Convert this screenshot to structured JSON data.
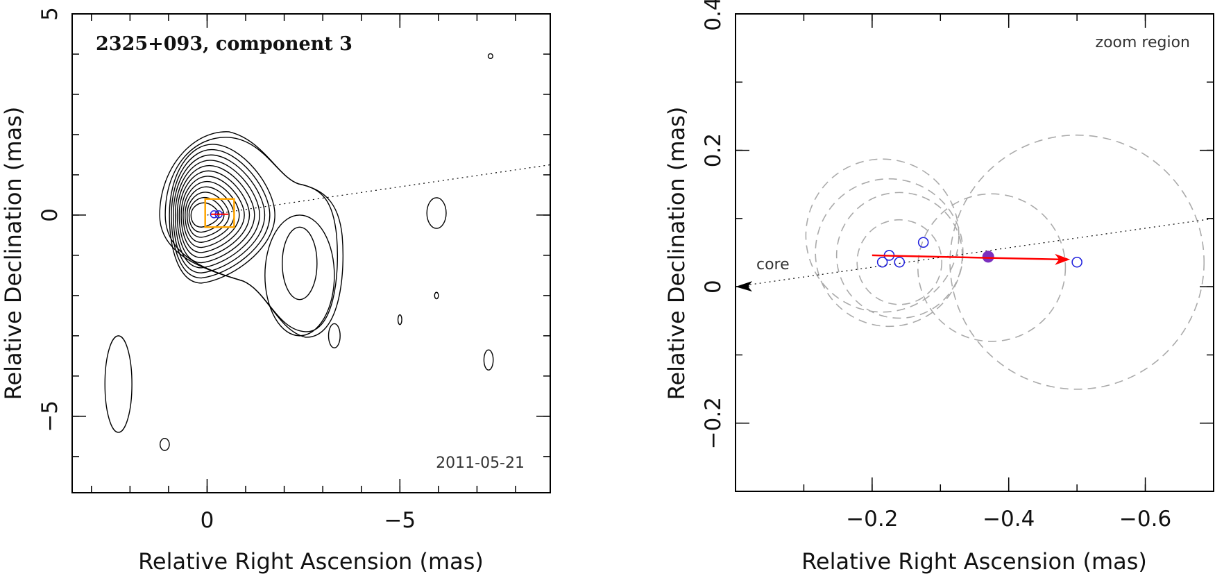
{
  "chart_data": [
    {
      "type": "contour",
      "title": "2325+093, component 3",
      "date": "2011-05-21",
      "xlabel": "Relative Right Ascension (mas)",
      "ylabel": "Relative Declination (mas)",
      "xlim": [
        3.5,
        -8.9
      ],
      "ylim": [
        -6.9,
        5.0
      ],
      "xticks": [
        0,
        -5
      ],
      "xtick_labels": [
        "0",
        "−5"
      ],
      "yticks": [
        -5,
        0,
        5
      ],
      "ytick_labels": [
        "−5",
        "0",
        "5"
      ],
      "xminor": [
        3,
        2,
        1,
        0,
        -1,
        -2,
        -3,
        -4,
        -5,
        -6,
        -7,
        -8
      ],
      "yminor": [
        -6,
        -5,
        -4,
        -3,
        -2,
        -1,
        0,
        1,
        2,
        3,
        4,
        5
      ],
      "main_source": {
        "center": [
          0.15,
          0.0
        ],
        "levels": 12
      },
      "secondary_contours": [
        {
          "center": [
            -2.4,
            -1.2
          ],
          "rx": 0.45,
          "ry": 0.9,
          "rot": 0
        },
        {
          "center": [
            -2.4,
            -1.5
          ],
          "rx": 0.9,
          "ry": 1.5,
          "rot": 0
        }
      ],
      "isolated_contours": [
        {
          "center": [
            -5.95,
            0.05
          ],
          "rx": 0.25,
          "ry": 0.38
        },
        {
          "center": [
            -3.3,
            -3.0
          ],
          "rx": 0.15,
          "ry": 0.3
        },
        {
          "center": [
            -7.3,
            -3.6
          ],
          "rx": 0.12,
          "ry": 0.25
        },
        {
          "center": [
            -5.0,
            -2.6
          ],
          "rx": 0.05,
          "ry": 0.12
        },
        {
          "center": [
            1.1,
            -5.7
          ],
          "rx": 0.12,
          "ry": 0.15
        },
        {
          "center": [
            2.3,
            -4.2
          ],
          "rx": 0.35,
          "ry": 1.2
        },
        {
          "center": [
            -7.35,
            3.95
          ],
          "rx": 0.06,
          "ry": 0.06
        },
        {
          "center": [
            -5.95,
            -2.0
          ],
          "rx": 0.05,
          "ry": 0.08
        }
      ],
      "jet_direction_line": {
        "from": [
          0.0,
          0.0
        ],
        "to": [
          -8.9,
          1.25
        ],
        "style": "dotted"
      },
      "zoom_box": {
        "x": [
          0.05,
          -0.7
        ],
        "y": [
          -0.3,
          0.4
        ],
        "color": "#ffa500"
      }
    },
    {
      "type": "scatter",
      "corner_label": "zoom region",
      "core_label": "core",
      "xlabel": "Relative Right Ascension (mas)",
      "ylabel": "Relative Declination (mas)",
      "xlim": [
        0.0,
        -0.7
      ],
      "ylim": [
        -0.3,
        0.4
      ],
      "xticks": [
        -0.2,
        -0.4,
        -0.6
      ],
      "xtick_labels": [
        "−0.2",
        "−0.4",
        "−0.6"
      ],
      "yticks": [
        -0.2,
        0,
        0.2,
        0.4
      ],
      "ytick_labels": [
        "−0.2",
        "0",
        "0.2",
        "0.4"
      ],
      "xminor": [
        -0.1,
        -0.2,
        -0.3,
        -0.4,
        -0.5,
        -0.6,
        -0.7
      ],
      "yminor": [
        -0.3,
        -0.2,
        -0.1,
        0,
        0.1,
        0.2,
        0.3,
        0.4
      ],
      "epochs": [
        {
          "x": -0.215,
          "y": 0.036
        },
        {
          "x": -0.225,
          "y": 0.046
        },
        {
          "x": -0.24,
          "y": 0.036
        },
        {
          "x": -0.275,
          "y": 0.065
        },
        {
          "x": -0.5,
          "y": 0.036
        }
      ],
      "current_epoch": {
        "x": -0.37,
        "y": 0.044,
        "color": "#7b2fbe"
      },
      "uncertainty_circles": [
        {
          "x": -0.215,
          "y": 0.075,
          "r": 0.112
        },
        {
          "x": -0.225,
          "y": 0.05,
          "r": 0.108
        },
        {
          "x": -0.24,
          "y": 0.046,
          "r": 0.092
        },
        {
          "x": -0.24,
          "y": 0.036,
          "r": 0.062
        },
        {
          "x": -0.375,
          "y": 0.028,
          "r": 0.108
        },
        {
          "x": -0.5,
          "y": 0.036,
          "r": 0.186
        }
      ],
      "motion_vector": {
        "from": [
          -0.2,
          0.046
        ],
        "to": [
          -0.49,
          0.04
        ],
        "color": "#ff0000"
      },
      "direction_line": {
        "from": [
          0.0,
          0.0
        ],
        "to": [
          -0.7,
          0.1
        ],
        "style": "dotted"
      }
    }
  ]
}
